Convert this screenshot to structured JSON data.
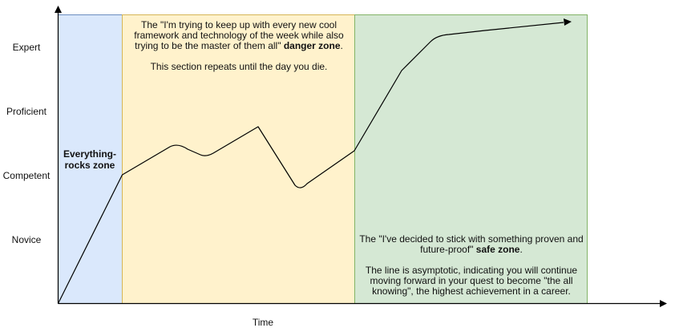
{
  "axes": {
    "x_label": "Time",
    "y_levels": [
      "Expert",
      "Proficient",
      "Competent",
      "Novice"
    ]
  },
  "zones": {
    "everything_rocks": {
      "label": "Everything-rocks zone",
      "fill": "#dae8fc",
      "stroke": "#6c8ebf"
    },
    "danger": {
      "fill": "#fff2cc",
      "stroke": "#d6b656",
      "text_before": "The \"I'm trying to keep up with every new cool framework and technology of the week while also trying to be the master of them all\" ",
      "text_bold": "danger zone",
      "text_after": ".",
      "text_second": "This section repeats until the day you die."
    },
    "safe": {
      "fill": "#d5e8d4",
      "stroke": "#82b366",
      "text_before": "The \"I've decided to stick with something proven and future-proof\" ",
      "text_bold": "safe zone",
      "text_after": ".",
      "text_second": "The line is asymptotic, indicating you will continue moving forward in your quest to become \"the all knowing\", the highest achievement in a career."
    }
  },
  "colors": {
    "axis": "#000000",
    "line": "#000000"
  }
}
